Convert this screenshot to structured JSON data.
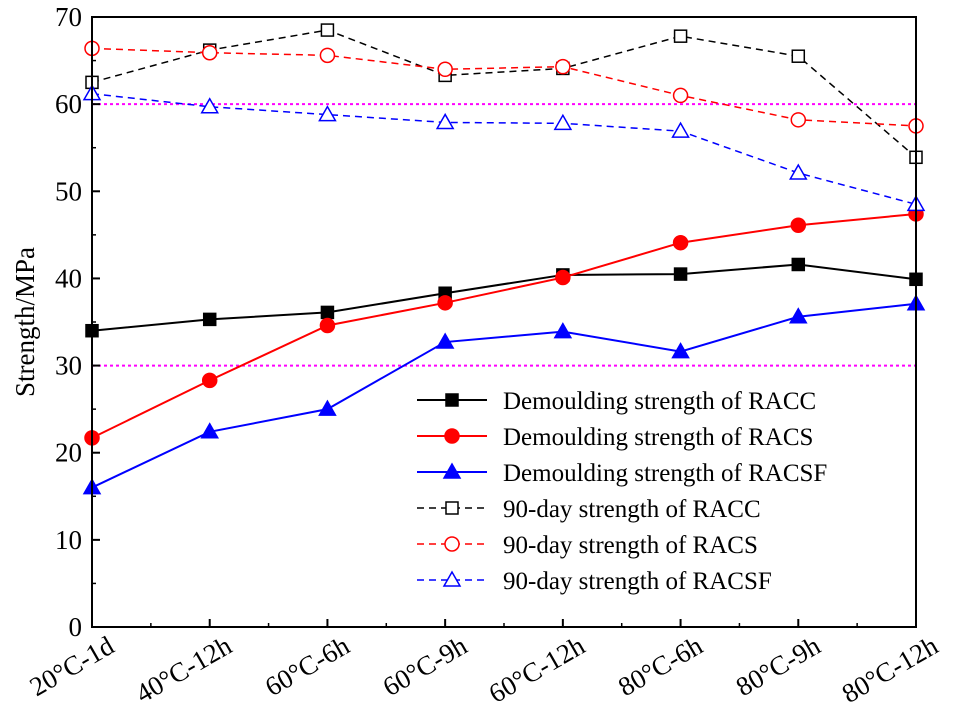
{
  "chart_data": {
    "type": "line",
    "title": "",
    "xlabel": "",
    "ylabel": "Strength/MPa",
    "ylim": [
      0,
      70
    ],
    "yticks": [
      "0",
      "10",
      "20",
      "30",
      "40",
      "50",
      "60",
      "70"
    ],
    "categories": [
      "20°C-1d",
      "40°C-12h",
      "60°C-6h",
      "60°C-9h",
      "60°C-12h",
      "80°C-6h",
      "80°C-9h",
      "80°C-12h"
    ],
    "reference_lines": [
      30,
      60
    ],
    "reference_color": "#ff00ff",
    "legend_position": "lower-right",
    "series": [
      {
        "name": "Demoulding strength of RACC",
        "values": [
          34.0,
          35.3,
          36.1,
          38.3,
          40.4,
          40.5,
          41.6,
          39.9
        ],
        "color": "#000000",
        "marker": "square",
        "filled": true,
        "dash": false
      },
      {
        "name": "Demoulding strength of RACS",
        "values": [
          21.7,
          28.3,
          34.6,
          37.2,
          40.1,
          44.1,
          46.1,
          47.4
        ],
        "color": "#ff0000",
        "marker": "circle",
        "filled": true,
        "dash": false
      },
      {
        "name": "Demoulding strength of RACSF",
        "values": [
          16.0,
          22.4,
          25.0,
          32.7,
          33.9,
          31.6,
          35.6,
          37.1
        ],
        "color": "#0000ff",
        "marker": "triangle",
        "filled": true,
        "dash": false
      },
      {
        "name": "90-day strength of RACC",
        "values": [
          62.5,
          66.2,
          68.5,
          63.3,
          64.1,
          67.8,
          65.5,
          53.9
        ],
        "color": "#000000",
        "marker": "square",
        "filled": false,
        "dash": true
      },
      {
        "name": "90-day strength of RACS",
        "values": [
          66.4,
          65.9,
          65.6,
          64.0,
          64.3,
          61.0,
          58.2,
          57.5
        ],
        "color": "#ff0000",
        "marker": "circle",
        "filled": false,
        "dash": true
      },
      {
        "name": "90-day strength of RACSF",
        "values": [
          61.2,
          59.7,
          58.8,
          57.9,
          57.8,
          56.9,
          52.1,
          48.5
        ],
        "color": "#0000ff",
        "marker": "triangle",
        "filled": false,
        "dash": true
      }
    ]
  }
}
